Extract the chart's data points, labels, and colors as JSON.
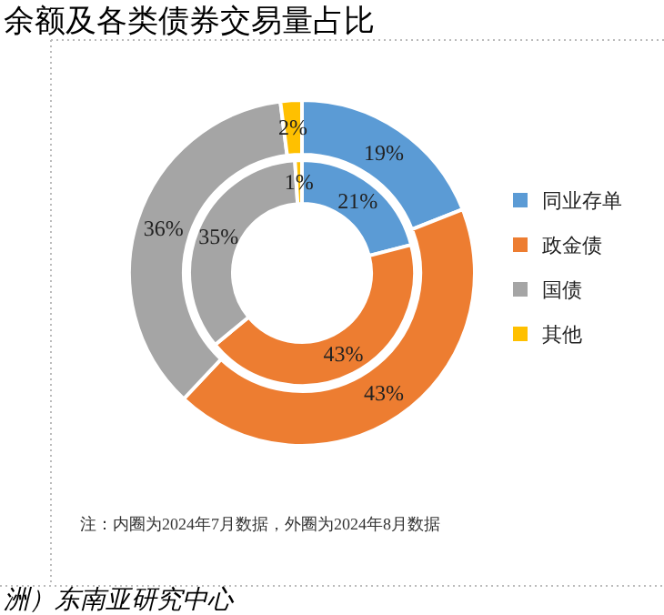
{
  "chart_data": {
    "type": "donut",
    "title": "余额及各类债券交易量占比",
    "categories": [
      "同业存单",
      "政金债",
      "国债",
      "其他"
    ],
    "colors": [
      "#5b9bd5",
      "#ed7d31",
      "#a5a5a5",
      "#ffc000"
    ],
    "series": [
      {
        "values": [
          21,
          43,
          35,
          1
        ],
        "value_labels": [
          "21%",
          "43%",
          "35%",
          "1%"
        ]
      },
      {
        "values": [
          19,
          43,
          36,
          2
        ],
        "value_labels": [
          "19%",
          "43%",
          "36%",
          "2%"
        ]
      }
    ],
    "legend": "right",
    "annotations": [
      "注：内圈为2024年7月数据，外圈为2024年8月数据",
      "洲）东南亚研究中心"
    ]
  }
}
